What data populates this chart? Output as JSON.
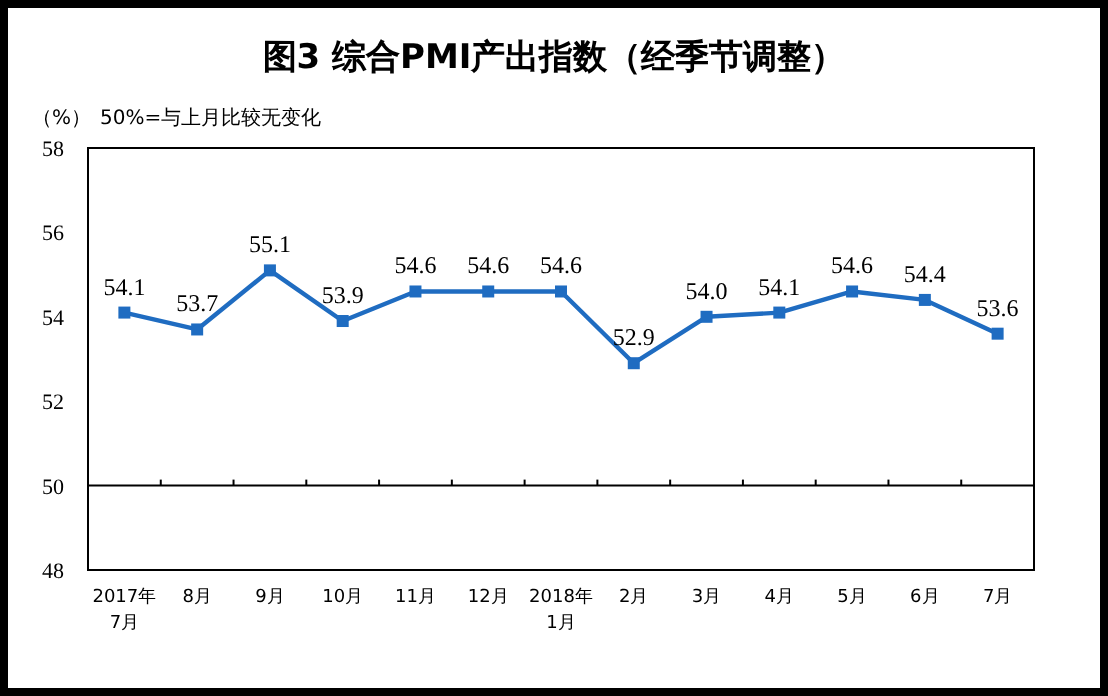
{
  "chart_data": {
    "type": "line",
    "title": "图3 综合PMI产出指数（经季节调整）",
    "ylabel": "（%）",
    "annotations": [
      "50%=与上月比较无变化"
    ],
    "categories": [
      "2017年\n7月",
      "8月",
      "9月",
      "10月",
      "11月",
      "12月",
      "2018年\n1月",
      "2月",
      "3月",
      "4月",
      "5月",
      "6月",
      "7月"
    ],
    "series": [
      {
        "color": "#1f6cc1",
        "values": [
          54.1,
          53.7,
          55.1,
          53.9,
          54.6,
          54.6,
          54.6,
          52.9,
          54.0,
          54.1,
          54.6,
          54.4,
          53.6
        ]
      }
    ],
    "value_labels": [
      "54.1",
      "53.7",
      "55.1",
      "53.9",
      "54.6",
      "54.6",
      "54.6",
      "52.9",
      "54.0",
      "54.1",
      "54.6",
      "54.4",
      "53.6"
    ],
    "marker": "square",
    "line_style": "solid",
    "ylim": [
      48,
      58
    ],
    "yticks": [
      48,
      50,
      52,
      54,
      56,
      58
    ],
    "grid": false,
    "ref_lines": [
      {
        "axis": "y",
        "value": 50,
        "color": "#000000"
      }
    ]
  }
}
